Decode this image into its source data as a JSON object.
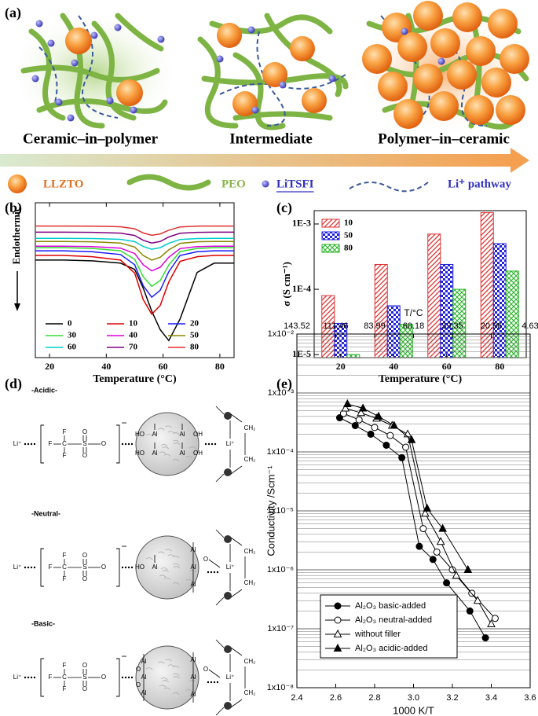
{
  "panel_a": {
    "label": "(a)",
    "titles": [
      "Ceramic–in–polymer",
      "Intermediate",
      "Polymer–in–ceramic"
    ],
    "legend": [
      "LLZTO",
      "PEO",
      "LiTSFI",
      "Li⁺ pathway"
    ]
  },
  "chart_data": [
    {
      "type": "line",
      "label": "(b)",
      "xlabel": "Temperature (°C)",
      "ylabel": "Endothermic",
      "x": [
        15,
        25,
        35,
        45,
        50,
        53,
        56,
        59,
        62,
        66,
        72,
        78,
        85
      ],
      "xlim": [
        15,
        85
      ],
      "xticks": [
        20,
        40,
        60,
        80
      ],
      "ylim": [
        0,
        100
      ],
      "series": [
        {
          "name": "0",
          "color": "#000000",
          "values": [
            63,
            63,
            62.5,
            61,
            57,
            45,
            30,
            18,
            11,
            25,
            55,
            61,
            61
          ]
        },
        {
          "name": "10",
          "color": "#e00000",
          "values": [
            66,
            66,
            65.2,
            63,
            54.6,
            37.5,
            28,
            33.7,
            48.9,
            62.2,
            65.2,
            66,
            66
          ]
        },
        {
          "name": "20",
          "color": "#1a1aff",
          "values": [
            69,
            69,
            68.4,
            66.6,
            60,
            46.5,
            39,
            43.5,
            55.5,
            66,
            68.4,
            69,
            69
          ]
        },
        {
          "name": "30",
          "color": "#33dd33",
          "values": [
            71,
            71,
            70.5,
            69,
            63.5,
            52.3,
            46,
            49.8,
            59.8,
            68.5,
            70.5,
            71,
            71
          ]
        },
        {
          "name": "40",
          "color": "#dd00dd",
          "values": [
            72,
            72,
            71.7,
            70.7,
            67.2,
            60,
            56,
            58.4,
            64.8,
            70.4,
            71.7,
            72,
            72
          ]
        },
        {
          "name": "50",
          "color": "#888800",
          "values": [
            75,
            75,
            74.8,
            74,
            71.4,
            66,
            63,
            64.8,
            69.6,
            73.8,
            74.8,
            75,
            75
          ]
        },
        {
          "name": "60",
          "color": "#00cccc",
          "values": [
            77,
            77,
            76.9,
            76.4,
            74.9,
            71.8,
            70,
            71,
            73.9,
            76.3,
            76.9,
            77,
            77
          ]
        },
        {
          "name": "70",
          "color": "#800080",
          "values": [
            81,
            81,
            80.9,
            80.4,
            78.9,
            75.8,
            74,
            75,
            77.9,
            80.3,
            80.9,
            81,
            81
          ]
        },
        {
          "name": "80",
          "color": "#e03030",
          "values": [
            85,
            85,
            84.9,
            84.5,
            83.2,
            80.5,
            79,
            79.9,
            82.3,
            84.4,
            84.9,
            85,
            85
          ]
        }
      ]
    },
    {
      "type": "bar",
      "label": "(c)",
      "xlabel": "Temperature (°C)",
      "ylabel": "σ (S cm⁻¹)",
      "categories": [
        "20",
        "40",
        "60",
        "80"
      ],
      "log_y": true,
      "ylim": [
        9e-06,
        0.0016
      ],
      "yticks": [
        {
          "value": 1e-05,
          "label": "1E-5"
        },
        {
          "value": 0.0001,
          "label": "1E-4"
        },
        {
          "value": 0.001,
          "label": "1E-3"
        }
      ],
      "series": [
        {
          "name": "10",
          "color": "#e03030",
          "pattern": "hatch",
          "values": [
            8e-05,
            0.00024,
            0.0007,
            0.0015
          ]
        },
        {
          "name": "50",
          "color": "#2020e0",
          "pattern": "checker",
          "values": [
            3e-05,
            5.6e-05,
            0.00024,
            0.0005
          ]
        },
        {
          "name": "80",
          "color": "#20b020",
          "pattern": "cross",
          "values": [
            1e-05,
            2.9e-05,
            0.0001,
            0.00019
          ]
        }
      ]
    },
    {
      "type": "line",
      "label": "(e)",
      "xlabel": "1000 K/T",
      "ylabel": "Conductivity /Scm⁻¹",
      "x2label": "T/°C",
      "xlim": [
        2.4,
        3.6
      ],
      "xticks": [
        2.4,
        2.6,
        2.8,
        {
          "value": 3,
          "label": "3.0"
        },
        3.2,
        3.4,
        3.6
      ],
      "x2ticks": [
        {
          "value": 2.4,
          "label": "143.52"
        },
        {
          "value": 2.6,
          "label": "111.46"
        },
        {
          "value": 2.8,
          "label": "83.99"
        },
        {
          "value": 3.0,
          "label": "60.18"
        },
        {
          "value": 3.2,
          "label": "39.35"
        },
        {
          "value": 3.4,
          "label": "20.96"
        },
        {
          "value": 3.6,
          "label": "4.63"
        }
      ],
      "log_y": true,
      "ylim": [
        1e-08,
        0.01
      ],
      "grid": "minor",
      "yticks": [
        {
          "value": 1e-08,
          "label": "1x10⁻⁸"
        },
        {
          "value": 1e-07,
          "label": "1x10⁻⁷"
        },
        {
          "value": 1e-06,
          "label": "1x10⁻⁶"
        },
        {
          "value": 1e-05,
          "label": "1x10⁻⁵"
        },
        {
          "value": 0.0001,
          "label": "1x10⁻⁴"
        },
        {
          "value": 0.001,
          "label": "1x10⁻³"
        },
        {
          "value": 0.01,
          "label": "1x10⁻²"
        }
      ],
      "series": [
        {
          "name": "Al₂O₃ basic-added",
          "marker": "circle",
          "filled": true,
          "x": [
            2.62,
            2.7,
            2.78,
            2.86,
            2.94,
            3.03,
            3.1,
            3.17,
            3.29,
            3.37
          ],
          "values": [
            0.00038,
            0.00028,
            0.0002,
            0.00013,
            8e-05,
            2.5e-06,
            1.5e-06,
            6e-07,
            2e-07,
            7e-08
          ]
        },
        {
          "name": "Al₂O₃ neutral-added",
          "marker": "circle",
          "filled": false,
          "x": [
            2.64,
            2.72,
            2.8,
            2.88,
            2.96,
            3.05,
            3.12,
            3.2,
            3.3,
            3.42
          ],
          "values": [
            0.00045,
            0.00035,
            0.00026,
            0.00019,
            0.00012,
            5e-06,
            2e-06,
            1e-06,
            4e-07,
            1.5e-07
          ]
        },
        {
          "name": "without filler",
          "marker": "triangle",
          "filled": false,
          "x": [
            2.65,
            2.73,
            2.81,
            2.89,
            2.97,
            3.06,
            3.14,
            3.22,
            3.33,
            3.4
          ],
          "values": [
            0.00055,
            0.00046,
            0.00037,
            0.00028,
            0.0002,
            9e-06,
            3e-06,
            8e-07,
            3e-07,
            1.2e-07
          ]
        },
        {
          "name": "Al₂O₃ acidic-added",
          "marker": "triangle",
          "filled": true,
          "x": [
            2.66,
            2.74,
            2.82,
            2.9,
            2.99,
            3.07,
            3.15,
            3.28
          ],
          "values": [
            0.00065,
            0.00055,
            0.0004,
            0.00028,
            0.00016,
            1.1e-05,
            5e-06,
            1e-06
          ]
        }
      ]
    }
  ],
  "panel_d": {
    "label": "(d)",
    "sections": [
      "-Acidic-",
      "-Neutral-",
      "-Basic-"
    ],
    "atoms": {
      "li": "Li⁺",
      "f": "F",
      "c": "C",
      "s": "S",
      "o": "O",
      "al": "Al",
      "oh": "OH",
      "ho": "HO",
      "ch2": "CH₂",
      "minus": "−"
    }
  }
}
